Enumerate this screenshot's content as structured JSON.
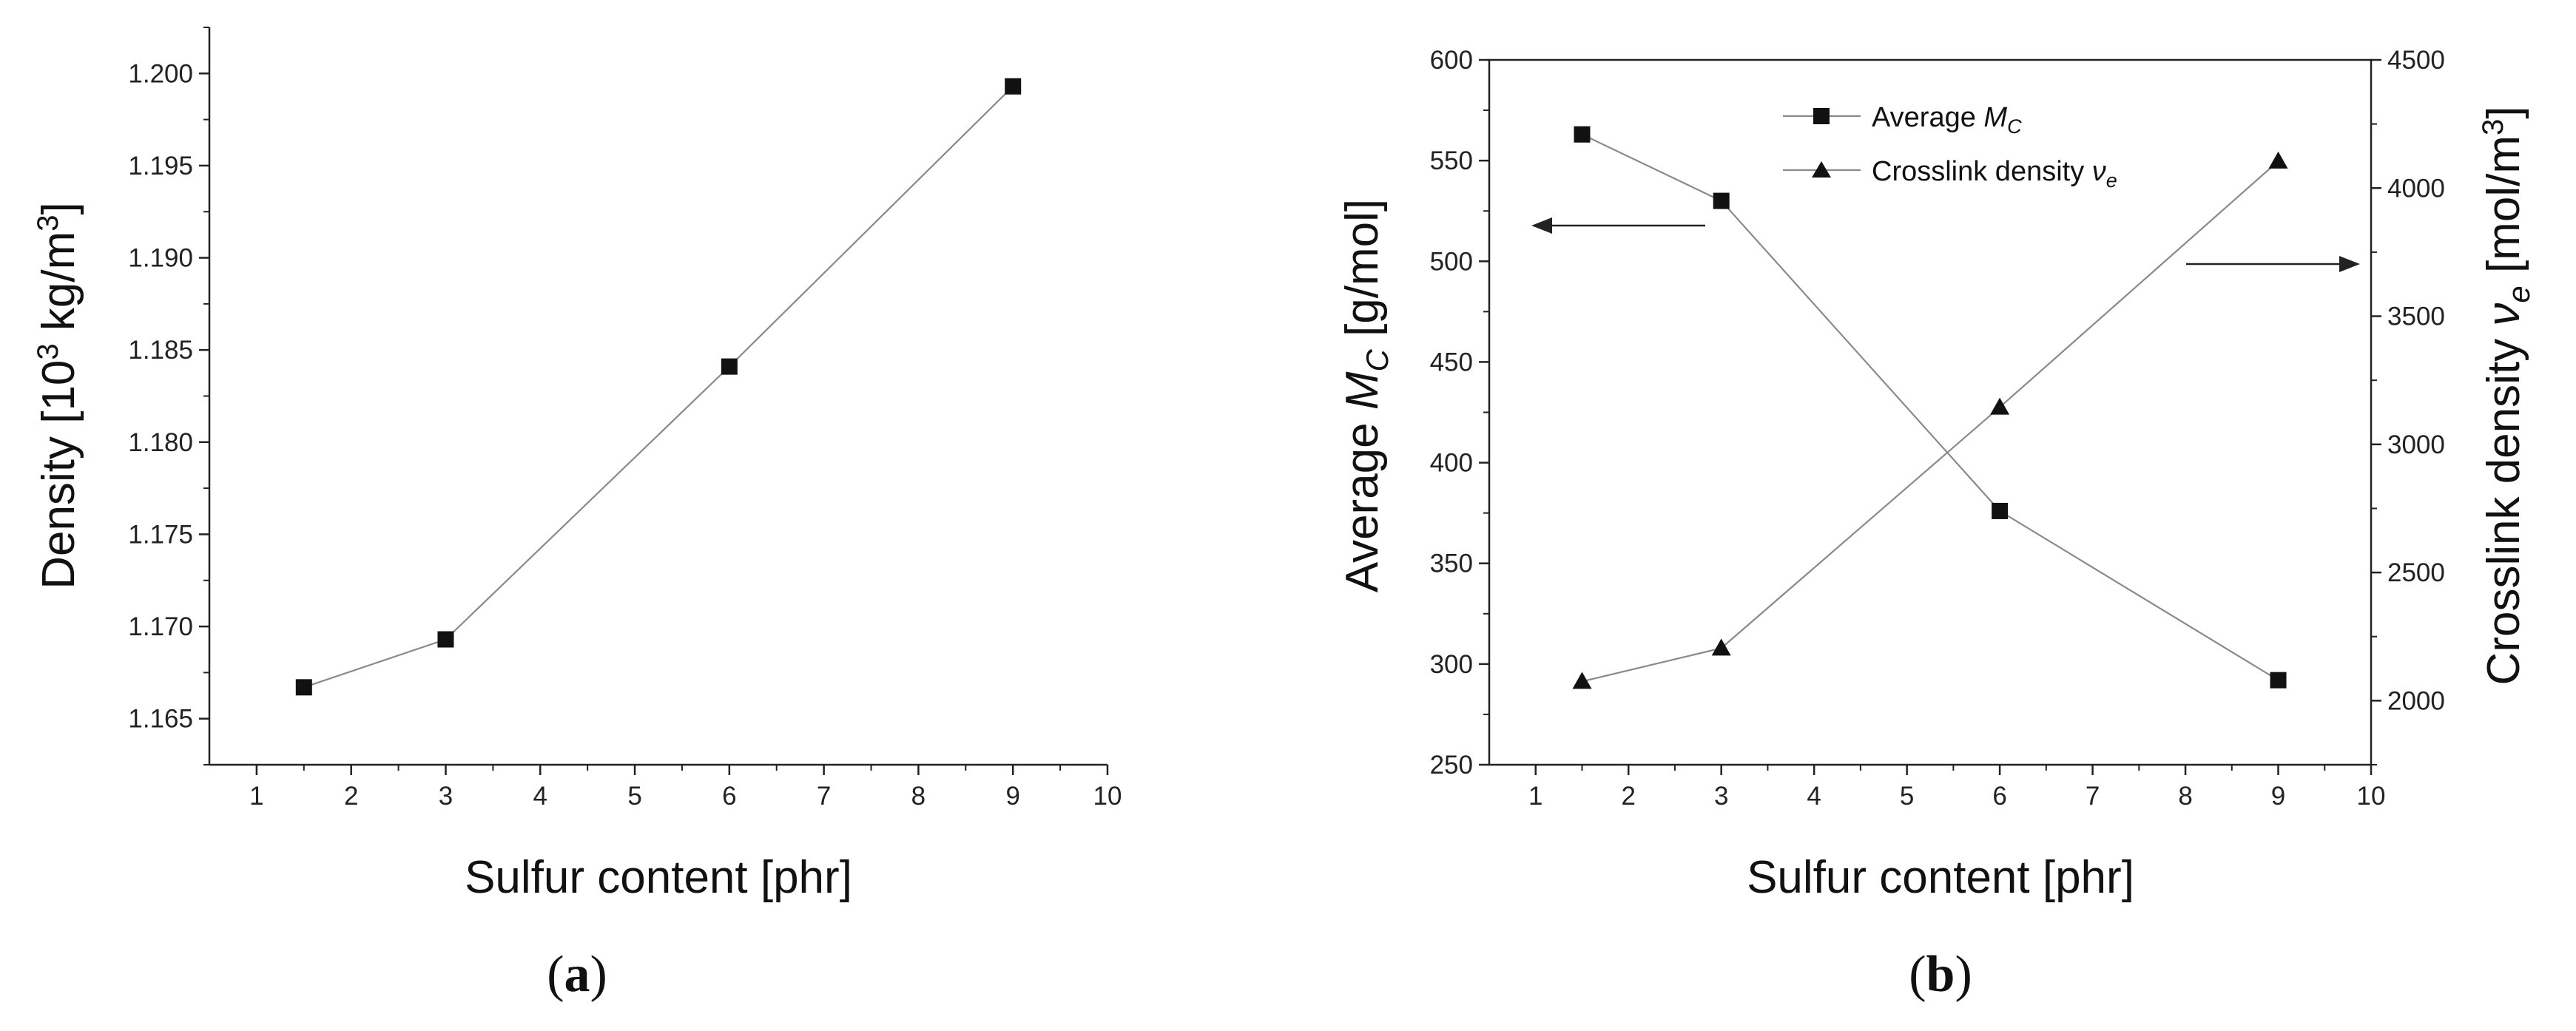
{
  "chart_data": [
    {
      "type": "line",
      "caption": "(a)",
      "caption_letter": "a",
      "xlabel": "Sulfur content [phr]",
      "ylabel": "Density [10",
      "ylabel_sup": "3",
      "ylabel_mid": " kg/m",
      "ylabel_sup2": "3",
      "ylabel_end": "]",
      "xlim": [
        0.5,
        10
      ],
      "ylim": [
        1.1625,
        1.2025
      ],
      "xticks": [
        "1",
        "2",
        "3",
        "4",
        "5",
        "6",
        "7",
        "8",
        "9",
        "10"
      ],
      "yticks": [
        "1.165",
        "1.170",
        "1.175",
        "1.180",
        "1.185",
        "1.190",
        "1.195",
        "1.200"
      ],
      "series": [
        {
          "name": "Density",
          "marker": "square",
          "x": [
            1.5,
            3,
            6,
            9
          ],
          "values": [
            1.1667,
            1.1693,
            1.1841,
            1.1993
          ]
        }
      ]
    },
    {
      "type": "line",
      "caption": "(b)",
      "caption_letter": "b",
      "xlabel": "Sulfur content [phr]",
      "ylabel_left": "Average ",
      "ylabel_left_sym": "M",
      "ylabel_left_sub": "C",
      "ylabel_left_end": " [g/mol]",
      "ylabel_right": "Crosslink density  ",
      "ylabel_right_sym": "ν",
      "ylabel_right_sub": "e",
      "ylabel_right_end": " [mol/m",
      "ylabel_right_sup": "3",
      "ylabel_right_close": "]",
      "xlim": [
        0.5,
        10
      ],
      "ylim_left": [
        250,
        600
      ],
      "ylim_right": [
        1750,
        4500
      ],
      "xticks": [
        "1",
        "2",
        "3",
        "4",
        "5",
        "6",
        "7",
        "8",
        "9",
        "10"
      ],
      "yticks_left": [
        "250",
        "300",
        "350",
        "400",
        "450",
        "500",
        "550",
        "600"
      ],
      "yticks_right": [
        "2000",
        "2500",
        "3000",
        "3500",
        "4000",
        "4500"
      ],
      "legend_position": "top-center",
      "series": [
        {
          "name": "Average M_C",
          "legend_text": "Average ",
          "legend_sym": "M",
          "legend_sub": "C",
          "marker": "square",
          "axis": "left",
          "x": [
            1.5,
            3,
            6,
            9
          ],
          "values": [
            563,
            530,
            376,
            292
          ]
        },
        {
          "name": "Crosslink density ν_e",
          "legend_text": "Crosslink density ",
          "legend_sym": "ν",
          "legend_sub": "e",
          "marker": "triangle",
          "axis": "right",
          "x": [
            1.5,
            3,
            6,
            9
          ],
          "values": [
            2075,
            2205,
            3145,
            4105
          ]
        }
      ]
    }
  ]
}
